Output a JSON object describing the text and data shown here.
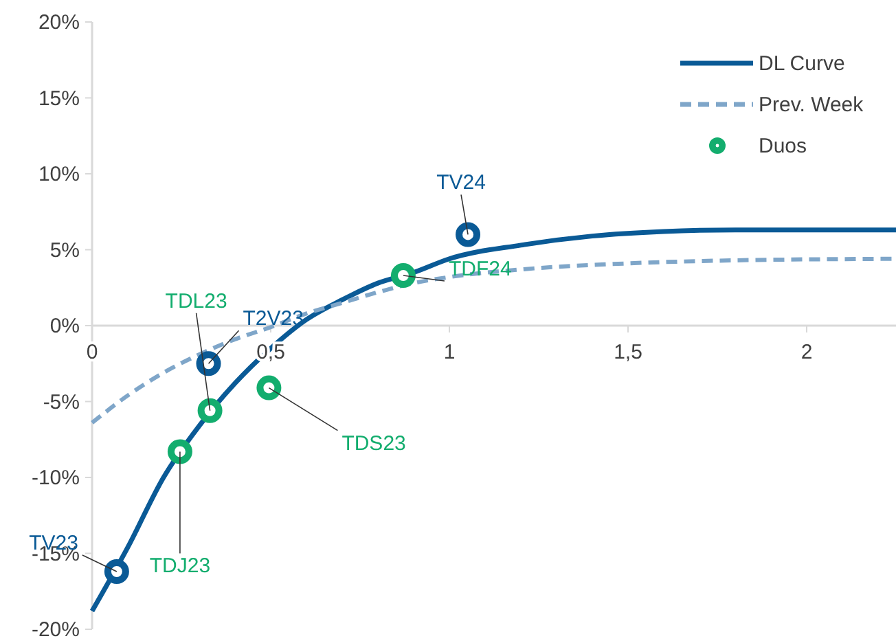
{
  "chart_data": {
    "type": "line",
    "xlim": [
      0,
      2.25
    ],
    "xticks": [
      0,
      {
        "value": 0.5,
        "label": "0,5"
      },
      1,
      {
        "value": 1.5,
        "label": "1,5"
      },
      2
    ],
    "ylim": [
      -20,
      20
    ],
    "yticks": [
      {
        "value": -20,
        "label": "-20%"
      },
      {
        "value": -15,
        "label": "-15%"
      },
      {
        "value": -10,
        "label": "-10%"
      },
      {
        "value": -5,
        "label": "-5%"
      },
      {
        "value": 0,
        "label": "0%"
      },
      {
        "value": 5,
        "label": "5%"
      },
      {
        "value": 10,
        "label": "10%"
      },
      {
        "value": 15,
        "label": "15%"
      },
      {
        "value": 20,
        "label": "20%"
      }
    ],
    "grid": false,
    "legend": "top right",
    "series": [
      {
        "name": "DL Curve",
        "type": "line",
        "color": "#0a5a96",
        "line_style": "solid",
        "marker": "none",
        "x": [
          0,
          0.1,
          0.2,
          0.3,
          0.4,
          0.5,
          0.6,
          0.7,
          0.8,
          0.9,
          1.0,
          1.2,
          1.4,
          1.6,
          1.8,
          2.0,
          2.25
        ],
        "values": [
          -18.8,
          -14.6,
          -10.0,
          -6.6,
          -3.8,
          -1.5,
          0.4,
          1.7,
          2.8,
          3.5,
          4.4,
          5.3,
          5.9,
          6.2,
          6.3,
          6.3,
          6.3
        ]
      },
      {
        "name": "Prev. Week",
        "type": "line",
        "color": "#7fa6c9",
        "line_style": "dashed",
        "marker": "none",
        "x": [
          0,
          0.1,
          0.2,
          0.3,
          0.4,
          0.5,
          0.6,
          0.7,
          0.8,
          0.9,
          1.0,
          1.2,
          1.5,
          1.8,
          2.25
        ],
        "values": [
          -6.4,
          -4.6,
          -3.1,
          -1.9,
          -0.9,
          -0.1,
          0.8,
          1.5,
          2.2,
          2.8,
          3.2,
          3.7,
          4.1,
          4.3,
          4.4
        ]
      },
      {
        "type": "scatter",
        "color": "#0a5a96",
        "marker": "circle",
        "x": [
          0.069,
          0.326,
          1.052
        ],
        "values": [
          -16.2,
          -2.5,
          6.0
        ]
      },
      {
        "name": "Duos",
        "type": "scatter",
        "color": "#13ad6e",
        "marker": "circle",
        "x": [
          0.246,
          0.33,
          0.495,
          0.871
        ],
        "values": [
          -8.3,
          -5.6,
          -4.1,
          3.3
        ]
      }
    ],
    "annotations": [
      {
        "text": "TV23",
        "x": 0.069,
        "y": -16.2
      },
      {
        "text": "TDJ23",
        "x": 0.246,
        "y": -8.3
      },
      {
        "text": "TDL23",
        "x": 0.33,
        "y": -5.6
      },
      {
        "text": "T2V23",
        "x": 0.326,
        "y": -2.5
      },
      {
        "text": "TDS23",
        "x": 0.495,
        "y": -4.1
      },
      {
        "text": "TDF24",
        "x": 0.871,
        "y": 3.3
      },
      {
        "text": "TV24",
        "x": 1.052,
        "y": 6.0
      }
    ]
  }
}
